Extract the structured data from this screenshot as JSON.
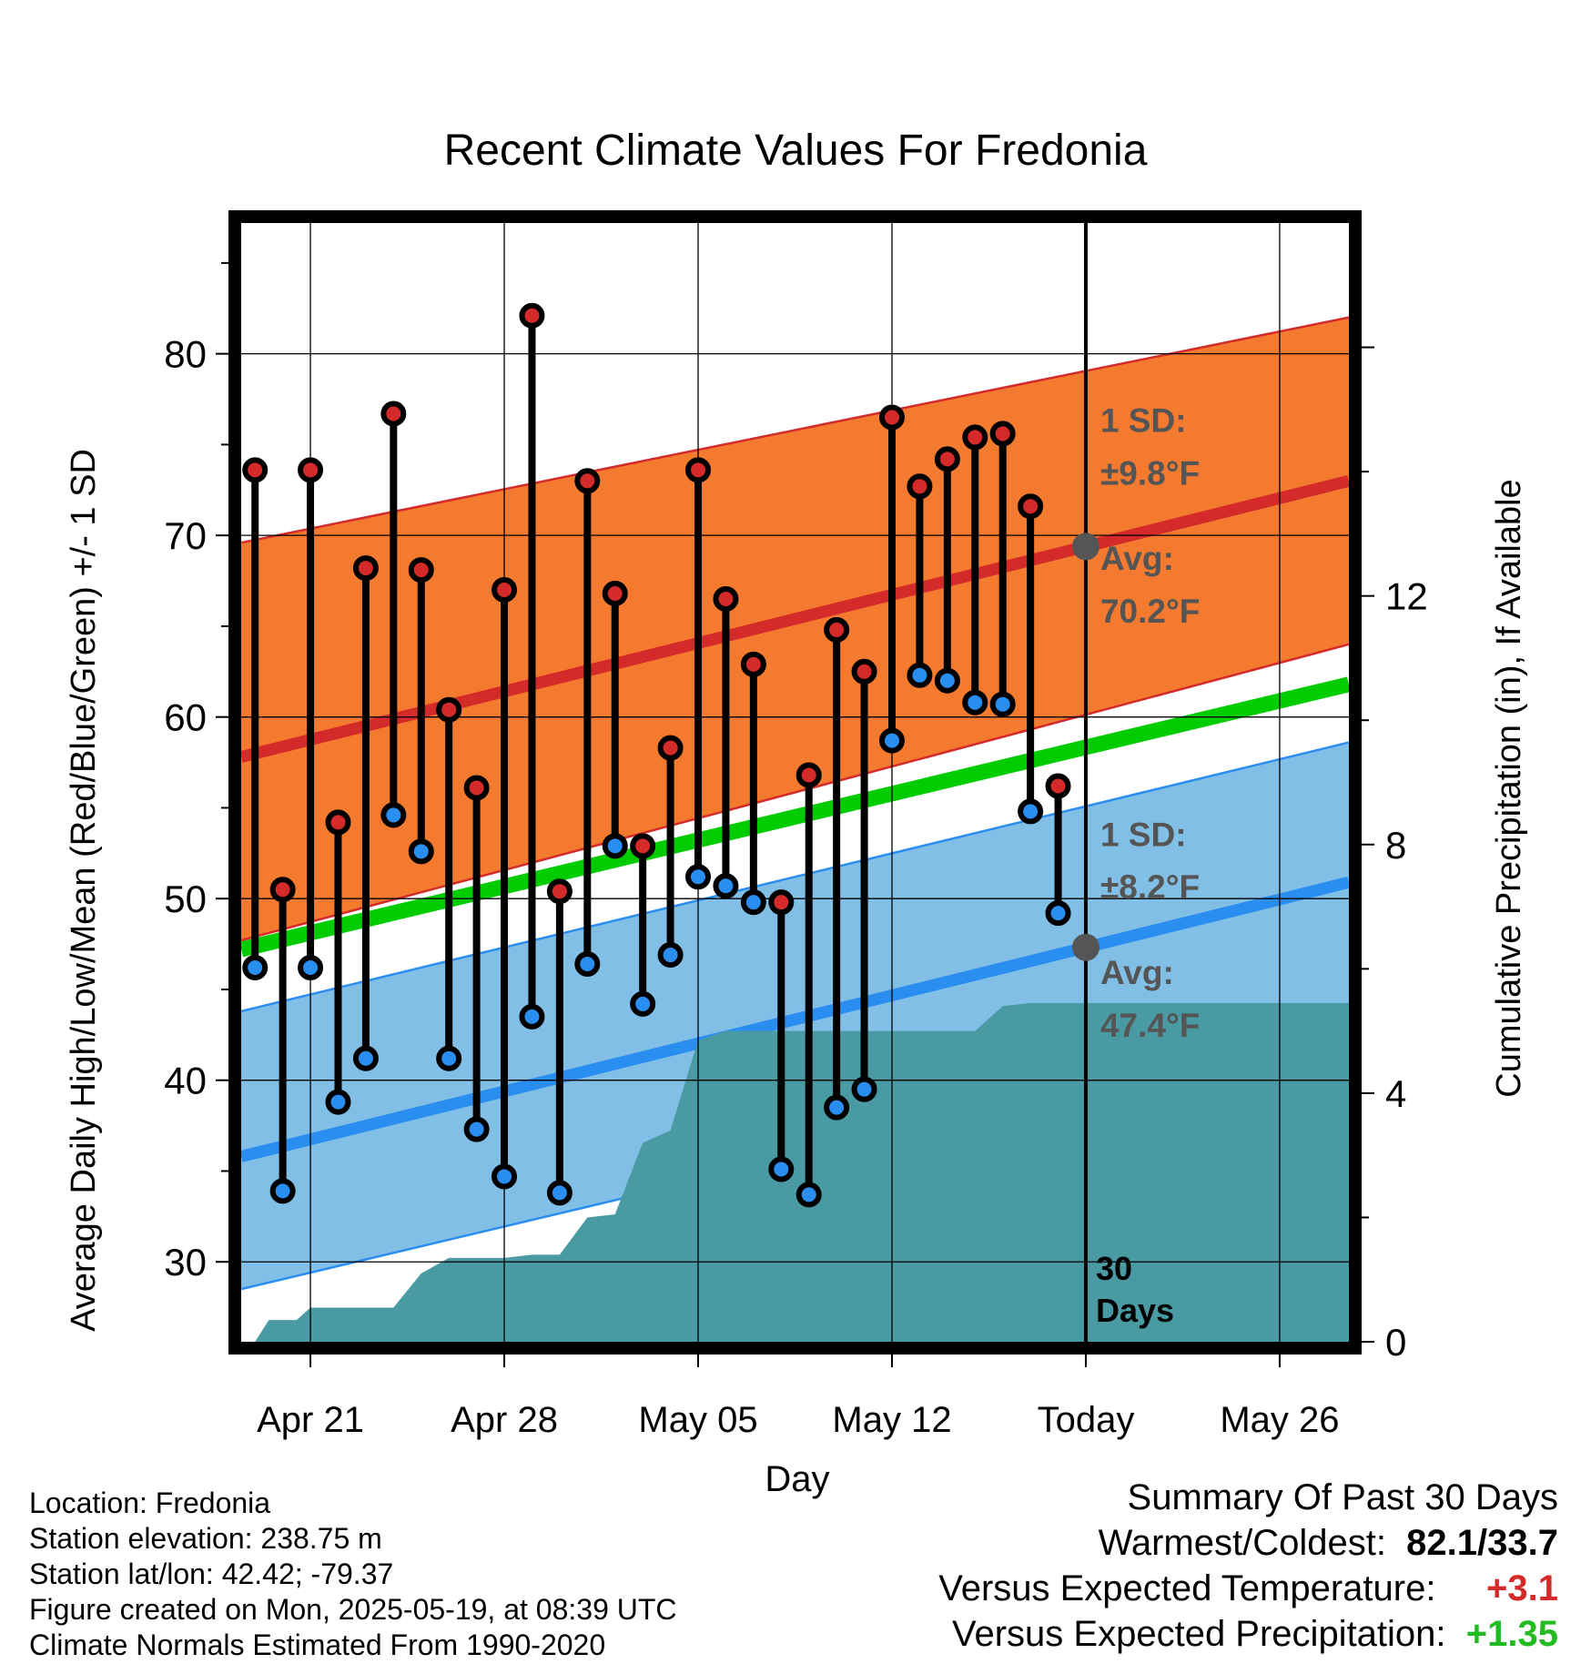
{
  "chart_data": {
    "type": "line",
    "title": "Recent Climate Values For Fredonia",
    "xlabel": "Day",
    "ylabel_left": "Average Daily High/Low/Mean (Red/Blue/Green) +/- 1 SD",
    "ylabel_right": "Cumulative Precipitation (in), If Available",
    "x_ticks": [
      "Apr 21",
      "Apr 28",
      "May 05",
      "May 12",
      "Today",
      "May 26"
    ],
    "x_tick_days": [
      2,
      9,
      16,
      23,
      30,
      37
    ],
    "xlim": [
      -0.5,
      39.5
    ],
    "ylim_left": [
      25.6,
      87.2
    ],
    "y_ticks_left": [
      30,
      40,
      50,
      60,
      70,
      80
    ],
    "ylim_right": [
      0,
      18.0
    ],
    "y_ticks_right": [
      0,
      4,
      8,
      12
    ],
    "today_day": 30,
    "today_label": [
      "30",
      "Days"
    ],
    "high_normal": {
      "days": [
        -0.5,
        39.5
      ],
      "avg": [
        57.8,
        73.0
      ],
      "upper": [
        69.6,
        82.0
      ],
      "lower": [
        47.7,
        64.0
      ]
    },
    "low_normal": {
      "days": [
        -0.5,
        39.5
      ],
      "avg": [
        35.8,
        50.9
      ],
      "upper": [
        43.8,
        58.6
      ],
      "lower": [
        28.5,
        43.0
      ]
    },
    "mean_normal": {
      "days": [
        -0.5,
        39.5
      ],
      "values": [
        47.2,
        61.8
      ]
    },
    "annotations": {
      "high_sd": [
        "1 SD:",
        "±9.8°F"
      ],
      "high_avg": [
        "Avg:",
        "70.2°F"
      ],
      "low_sd": [
        "1 SD:",
        "±8.2°F"
      ],
      "low_avg": [
        "Avg:",
        "47.4°F"
      ]
    },
    "series": [
      {
        "name": "High",
        "days": [
          0,
          1,
          2,
          3,
          4,
          5,
          6,
          7,
          8,
          9,
          10,
          11,
          12,
          13,
          14,
          15,
          16,
          17,
          18,
          19,
          20,
          21,
          22,
          23,
          24,
          25,
          26,
          27,
          28,
          29
        ],
        "values": [
          73.6,
          50.5,
          73.6,
          54.2,
          68.2,
          76.7,
          68.1,
          60.4,
          56.1,
          67.0,
          82.1,
          50.4,
          73.0,
          66.8,
          52.9,
          58.3,
          73.6,
          66.5,
          62.9,
          49.8,
          56.8,
          64.8,
          62.5,
          76.5,
          72.7,
          74.2,
          75.4,
          75.6,
          71.6,
          56.2
        ]
      },
      {
        "name": "Low",
        "days": [
          0,
          1,
          2,
          3,
          4,
          5,
          6,
          7,
          8,
          9,
          10,
          11,
          12,
          13,
          14,
          15,
          16,
          17,
          18,
          19,
          20,
          21,
          22,
          23,
          24,
          25,
          26,
          27,
          28,
          29
        ],
        "values": [
          46.2,
          33.9,
          46.2,
          38.8,
          41.2,
          54.6,
          52.6,
          41.2,
          37.3,
          34.7,
          43.5,
          33.8,
          46.4,
          52.9,
          44.2,
          46.9,
          51.2,
          50.7,
          49.8,
          35.1,
          33.7,
          38.5,
          39.5,
          58.7,
          62.3,
          62.0,
          60.8,
          60.7,
          54.8,
          49.2
        ]
      },
      {
        "name": "Cumulative Precipitation",
        "days": [
          0,
          0.5,
          1.5,
          2,
          5,
          6,
          7,
          8,
          9,
          10,
          11,
          12,
          13,
          14,
          15,
          16,
          17,
          18,
          19,
          20,
          21,
          22,
          23,
          24,
          25,
          26,
          27,
          28,
          29,
          39.5
        ],
        "values": [
          0,
          0.35,
          0.35,
          0.55,
          0.55,
          1.1,
          1.35,
          1.35,
          1.35,
          1.4,
          1.4,
          2.0,
          2.05,
          3.2,
          3.4,
          4.85,
          5.0,
          5.0,
          5.0,
          5.0,
          5.0,
          5.0,
          5.0,
          5.0,
          5.0,
          5.0,
          5.4,
          5.45,
          5.45,
          5.45
        ]
      }
    ],
    "colors": {
      "high": "#d42a2a",
      "low": "#2a8ef0",
      "high_band": "#f47a30",
      "low_band": "#82bfe6",
      "mean": "#00cc00",
      "precip": "#4a9aa4",
      "annotation": "#555555"
    }
  },
  "footer": {
    "location": "Location: Fredonia",
    "elevation": "Station elevation: 238.75 m",
    "latlon": "Station lat/lon: 42.42; -79.37",
    "created": "Figure created on Mon, 2025-05-19, at 08:39 UTC",
    "normals": "Climate Normals Estimated From 1990-2020"
  },
  "summary": {
    "title": "Summary Of Past 30 Days",
    "warm_cold_label": "Warmest/Coldest:",
    "warm_cold_value": "82.1/33.7",
    "temp_label": "Versus Expected Temperature:",
    "temp_value": "+3.1",
    "temp_color": "#d42a2a",
    "precip_label": "Versus Expected Precipitation:",
    "precip_value": "+1.35",
    "precip_color": "#22bb22"
  }
}
